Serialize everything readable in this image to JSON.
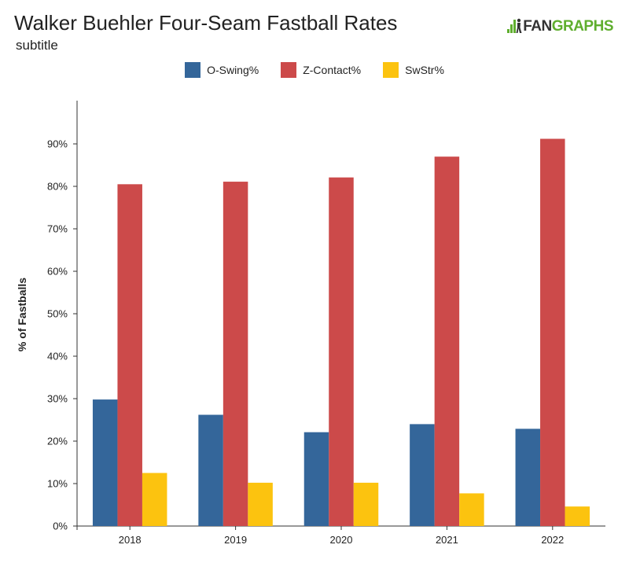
{
  "chart_data": {
    "type": "bar",
    "title": "Walker Buehler Four-Seam Fastball Rates",
    "subtitle": "subtitle",
    "ylabel": "% of Fastballs",
    "xlabel": "",
    "categories": [
      "2018",
      "2019",
      "2020",
      "2021",
      "2022"
    ],
    "series": [
      {
        "name": "O-Swing%",
        "color": "#34669a",
        "values": [
          29.8,
          26.2,
          22.1,
          24.0,
          22.9
        ]
      },
      {
        "name": "Z-Contact%",
        "color": "#cc4a4a",
        "values": [
          80.5,
          81.1,
          82.1,
          87.0,
          91.2
        ]
      },
      {
        "name": "SwStr%",
        "color": "#fcc30f",
        "values": [
          12.5,
          10.2,
          10.2,
          7.7,
          4.6
        ]
      }
    ],
    "ylim": [
      0,
      100
    ],
    "yticks": [
      0,
      10,
      20,
      30,
      40,
      50,
      60,
      70,
      80,
      90
    ],
    "ytick_labels": [
      "0%",
      "10%",
      "20%",
      "30%",
      "40%",
      "50%",
      "60%",
      "70%",
      "80%",
      "90%"
    ],
    "grid": false,
    "legend_position": "top-center"
  },
  "logo": {
    "part1": "FAN",
    "part2": "GRAPHS"
  }
}
